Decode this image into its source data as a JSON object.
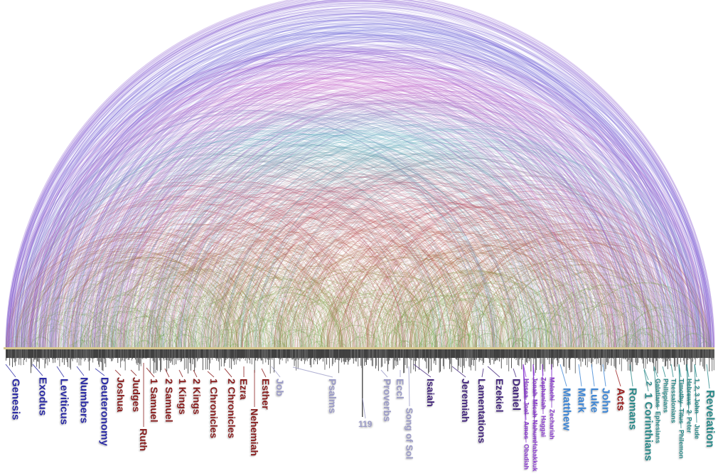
{
  "colors": {
    "law": "#2b2ba6",
    "history": "#8a1f1f",
    "poetry": "#9c9cc8",
    "major_prophets": "#45287e",
    "minor_prophets": "#8a3bd0",
    "gospels": "#3d86d6",
    "acts": "#9a1f1f",
    "epistles": "#2a8a8a"
  },
  "books": [
    {
      "label": "Genesis",
      "group": "law"
    },
    {
      "label": "Exodus",
      "group": "law"
    },
    {
      "label": "Leviticus",
      "group": "law"
    },
    {
      "label": "Numbers",
      "group": "law"
    },
    {
      "label": "Deuteronomy",
      "group": "law"
    },
    {
      "label": "Joshua",
      "group": "history"
    },
    {
      "label": "Judges",
      "group": "history"
    },
    {
      "label": "Ruth",
      "group": "history"
    },
    {
      "label": "1 Samuel",
      "group": "history"
    },
    {
      "label": "2 Samuel",
      "group": "history"
    },
    {
      "label": "1 Kings",
      "group": "history"
    },
    {
      "label": "2 Kings",
      "group": "history"
    },
    {
      "label": "1 Chronicles",
      "group": "history"
    },
    {
      "label": "2 Chronicles",
      "group": "history"
    },
    {
      "label": "Ezra",
      "group": "history"
    },
    {
      "label": "Nehemiah",
      "group": "history"
    },
    {
      "label": "Esther",
      "group": "history"
    },
    {
      "label": "Job",
      "group": "poetry"
    },
    {
      "label": "Psalms",
      "group": "poetry"
    },
    {
      "label": "119",
      "group": "poetry"
    },
    {
      "label": "Proverbs",
      "group": "poetry"
    },
    {
      "label": "Eccl",
      "group": "poetry"
    },
    {
      "label": "Song of Sol",
      "group": "poetry"
    },
    {
      "label": "Isaiah",
      "group": "major_prophets"
    },
    {
      "label": "Jeremiah",
      "group": "major_prophets"
    },
    {
      "label": "Lamentations",
      "group": "major_prophets"
    },
    {
      "label": "Ezekiel",
      "group": "major_prophets"
    },
    {
      "label": "Daniel",
      "group": "major_prophets"
    },
    {
      "label": "Hosea",
      "group": "minor_prophets"
    },
    {
      "label": "Joel",
      "group": "minor_prophets"
    },
    {
      "label": "Amos",
      "group": "minor_prophets"
    },
    {
      "label": "Obadiah",
      "group": "minor_prophets"
    },
    {
      "label": "Jonah",
      "group": "minor_prophets"
    },
    {
      "label": "Micah",
      "group": "minor_prophets"
    },
    {
      "label": "Nahum",
      "group": "minor_prophets"
    },
    {
      "label": "Habakkuk",
      "group": "minor_prophets"
    },
    {
      "label": "Zephaniah",
      "group": "minor_prophets"
    },
    {
      "label": "Haggai",
      "group": "minor_prophets"
    },
    {
      "label": "Zechariah",
      "group": "minor_prophets"
    },
    {
      "label": "Malachi",
      "group": "minor_prophets"
    },
    {
      "label": "Matthew",
      "group": "gospels"
    },
    {
      "label": "Mark",
      "group": "gospels"
    },
    {
      "label": "Luke",
      "group": "gospels"
    },
    {
      "label": "John",
      "group": "gospels"
    },
    {
      "label": "Acts",
      "group": "acts"
    },
    {
      "label": "Romans",
      "group": "epistles"
    },
    {
      "label": "2",
      "group": "epistles"
    },
    {
      "label": "1 Corinthians",
      "group": "epistles"
    },
    {
      "label": "Galatians",
      "group": "epistles"
    },
    {
      "label": "Ephesians",
      "group": "epistles"
    },
    {
      "label": "Philippians",
      "group": "epistles"
    },
    {
      "label": "Thessalonians",
      "group": "epistles"
    },
    {
      "label": "Timothy",
      "group": "epistles"
    },
    {
      "label": "Titus",
      "group": "epistles"
    },
    {
      "label": "Philemon",
      "group": "epistles"
    },
    {
      "label": "Hebrews",
      "group": "epistles"
    },
    {
      "label": "2",
      "group": "epistles"
    },
    {
      "label": "Peter",
      "group": "epistles"
    },
    {
      "label": "1, 2, 3 John",
      "group": "epistles"
    },
    {
      "label": "Jude",
      "group": "epistles"
    },
    {
      "label": "Revelation",
      "group": "epistles"
    }
  ]
}
